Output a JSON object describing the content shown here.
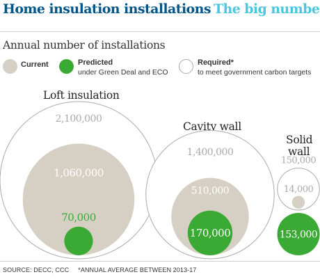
{
  "header": {
    "title_main": "Home insulation installations",
    "title_accent": "The big numbers"
  },
  "chart_data": {
    "type": "proportional-circles",
    "subtitle": "Annual number of installations",
    "legend": [
      {
        "key": "current",
        "label": "Current",
        "description": "",
        "color": "#d5d0c3"
      },
      {
        "key": "predicted",
        "label": "Predicted",
        "description": "under Green Deal and ECO",
        "color": "#3aaa35"
      },
      {
        "key": "required",
        "label": "Required*",
        "description": "to meet government carbon targets",
        "color": "#ffffff"
      }
    ],
    "categories": [
      {
        "name": "Loft insulation",
        "required": 2100000,
        "current": 1060000,
        "predicted": 70000,
        "labels": {
          "required": "2,100,000",
          "current": "1,060,000",
          "predicted": "70,000"
        }
      },
      {
        "name": "Cavity wall",
        "required": 1400000,
        "current": 510000,
        "predicted": 170000,
        "labels": {
          "required": "1,400,000",
          "current": "510,000",
          "predicted": "170,000"
        }
      },
      {
        "name": "Solid wall",
        "name_lines": [
          "Solid",
          "wall"
        ],
        "required": 150000,
        "current": 14000,
        "predicted": 153000,
        "labels": {
          "required": "150,000",
          "current": "14,000",
          "predicted": "153,000"
        }
      }
    ],
    "colors": {
      "current": "#d5d0c3",
      "predicted": "#3aaa35",
      "required_stroke": "#aaaaaa",
      "required_label": "#aaaaaa",
      "label_light": "#ffffff",
      "label_green": "#3aaa35"
    }
  },
  "footer": {
    "source": "SOURCE: DECC, CCC",
    "note": "*ANNUAL AVERAGE BETWEEN 2013-17"
  }
}
